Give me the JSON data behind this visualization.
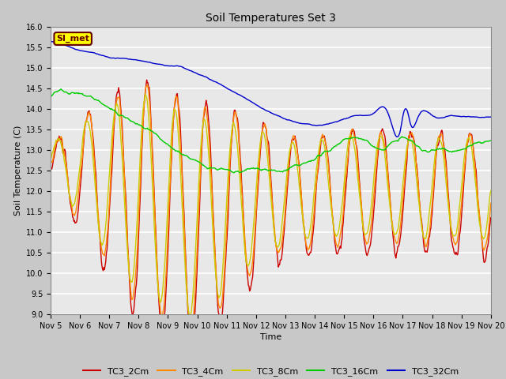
{
  "title": "Soil Temperatures Set 3",
  "xlabel": "Time",
  "ylabel": "Soil Temperature (C)",
  "ylim": [
    9.0,
    16.0
  ],
  "yticks": [
    9.0,
    9.5,
    10.0,
    10.5,
    11.0,
    11.5,
    12.0,
    12.5,
    13.0,
    13.5,
    14.0,
    14.5,
    15.0,
    15.5,
    16.0
  ],
  "xtick_labels": [
    "Nov 5",
    "Nov 6",
    "Nov 7",
    "Nov 8",
    "Nov 9",
    "Nov 10",
    "Nov 11",
    "Nov 12",
    "Nov 13",
    "Nov 14",
    "Nov 15",
    "Nov 16",
    "Nov 17",
    "Nov 18",
    "Nov 19",
    "Nov 20"
  ],
  "colors": {
    "TC3_2Cm": "#cc0000",
    "TC3_4Cm": "#ff8800",
    "TC3_8Cm": "#cccc00",
    "TC3_16Cm": "#00cc00",
    "TC3_32Cm": "#0000cc"
  },
  "fig_facecolor": "#c8c8c8",
  "ax_facecolor": "#e8e8e8",
  "grid_color": "#ffffff",
  "si_met_label": "SI_met",
  "si_met_bg": "#ffff00",
  "si_met_border": "#660000",
  "legend_labels": [
    "TC3_2Cm",
    "TC3_4Cm",
    "TC3_8Cm",
    "TC3_16Cm",
    "TC3_32Cm"
  ]
}
